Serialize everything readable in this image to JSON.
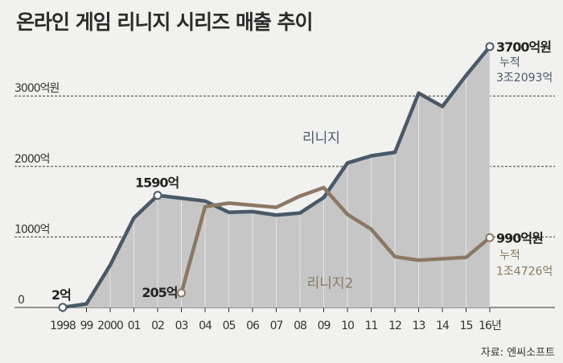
{
  "chart_data": {
    "type": "line",
    "title": "온라인 게임 리니지 시리즈 매출 추이",
    "categories": [
      "1998",
      "99",
      "2000",
      "01",
      "02",
      "03",
      "04",
      "05",
      "06",
      "07",
      "08",
      "09",
      "10",
      "11",
      "12",
      "13",
      "14",
      "15",
      "16년"
    ],
    "ylim": [
      0,
      3900
    ],
    "y_ticks": [
      {
        "value": 0,
        "label": "0"
      },
      {
        "value": 1000,
        "label": "1000억"
      },
      {
        "value": 2000,
        "label": "2000억"
      },
      {
        "value": 3000,
        "label": "3000억원"
      }
    ],
    "series": [
      {
        "name": "리니지",
        "color": "#4a5968",
        "values": [
          2,
          50,
          600,
          1270,
          1590,
          1550,
          1510,
          1350,
          1360,
          1310,
          1340,
          1560,
          2050,
          2150,
          2200,
          3040,
          2850,
          3290,
          3700
        ]
      },
      {
        "name": "리니지2",
        "color": "#8a7864",
        "values": [
          null,
          null,
          null,
          null,
          null,
          205,
          1430,
          1480,
          1450,
          1420,
          1580,
          1700,
          1320,
          1110,
          720,
          670,
          690,
          710,
          990
        ]
      }
    ],
    "annotations": {
      "start_1": "2억",
      "peak_1": "1590억",
      "start_2": "205억",
      "end_1_value": "3700억원",
      "end_1_cum_label": "누적",
      "end_1_cum_value": "3조2093억",
      "end_2_value": "990억원",
      "end_2_cum_label": "누적",
      "end_2_cum_value": "1조4726억"
    },
    "grid": true,
    "legend": "inline"
  },
  "source": "자료: 엔씨소프트"
}
